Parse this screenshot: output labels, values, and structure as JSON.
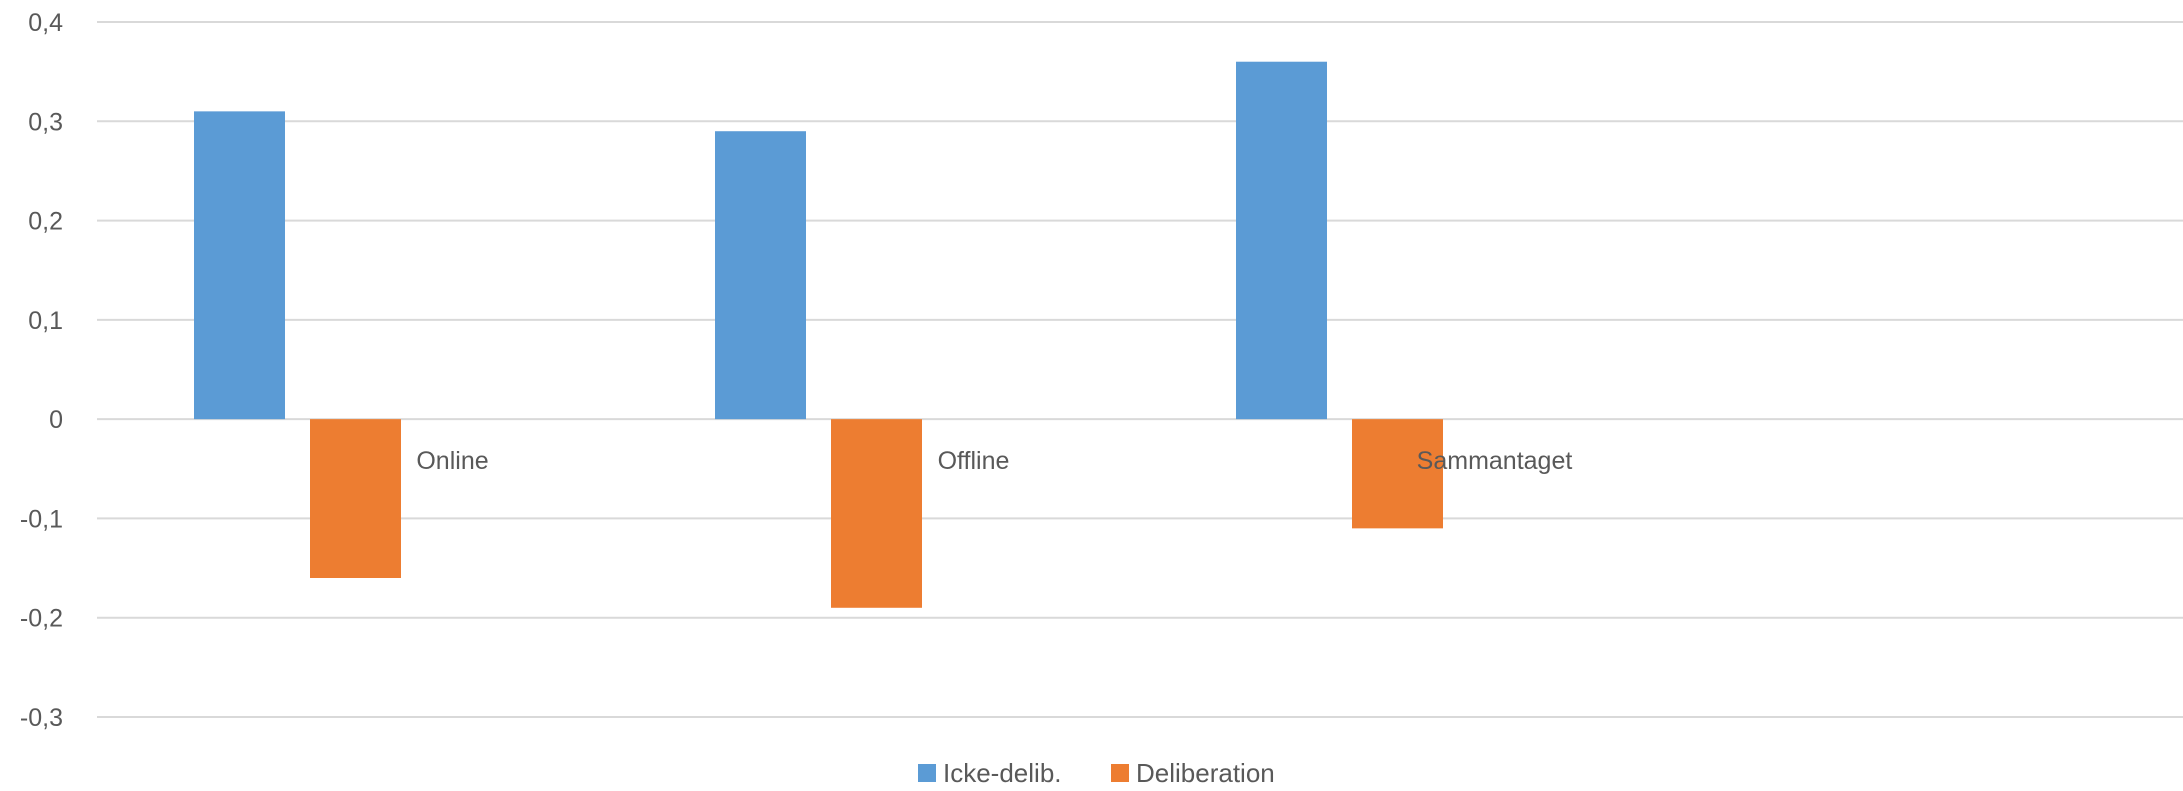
{
  "chart_data": {
    "type": "bar",
    "title": "",
    "xlabel": "",
    "ylabel": "",
    "categories": [
      "Online",
      "Offline",
      "Sammantaget"
    ],
    "series": [
      {
        "name": "Icke-delib.",
        "values": [
          0.31,
          0.29,
          0.36
        ],
        "color": "#5B9BD5"
      },
      {
        "name": "Deliberation",
        "values": [
          -0.16,
          -0.19,
          -0.11
        ],
        "color": "#ED7D31"
      }
    ],
    "ylim": [
      -0.3,
      0.4
    ],
    "yticks": [
      0.4,
      0.3,
      0.2,
      0.1,
      0,
      -0.1,
      -0.2,
      -0.3
    ],
    "ytick_labels": [
      "0,4",
      "0,3",
      "0,2",
      "0,1",
      "0",
      "-0,1",
      "-0,2",
      "-0,3"
    ],
    "grid": true,
    "gridline_color": "#D9D9D9",
    "legend_position": "bottom"
  }
}
